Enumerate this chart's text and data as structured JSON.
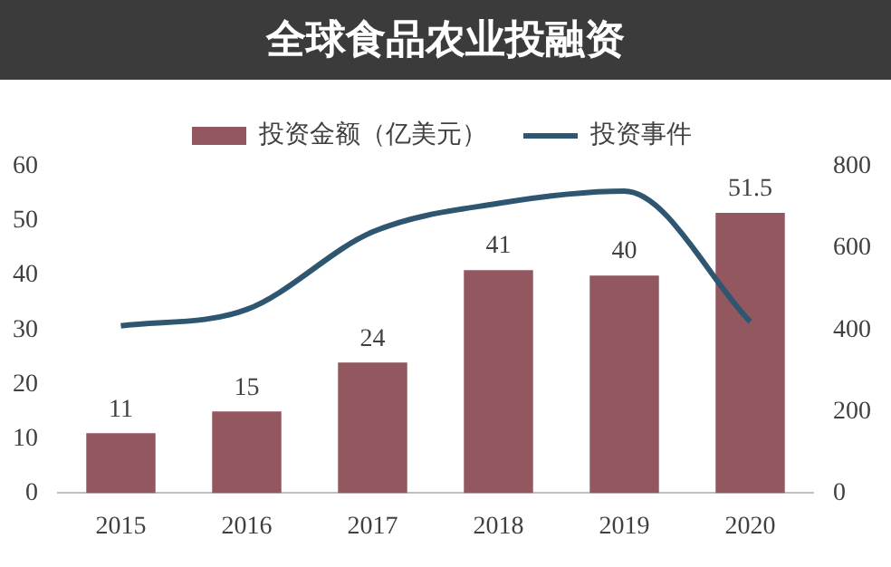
{
  "chart_data": {
    "type": "bar",
    "title": "全球食品农业投融资",
    "categories": [
      "2015",
      "2016",
      "2017",
      "2018",
      "2019",
      "2020"
    ],
    "series": [
      {
        "name": "投资金额（亿美元）",
        "color": "#935760",
        "values": [
          11,
          15,
          24,
          41,
          40,
          51.5
        ],
        "value_labels": [
          "11",
          "15",
          "24",
          "41",
          "40",
          "51.5"
        ]
      },
      {
        "name": "投资事件",
        "type": "line",
        "axis": "y2",
        "color": "#2e5670",
        "values": [
          410,
          450,
          640,
          710,
          740,
          420
        ]
      }
    ],
    "ylim": [
      0,
      60
    ],
    "yticks": [
      0,
      10,
      20,
      30,
      40,
      50,
      60
    ],
    "y2lim": [
      0,
      800
    ],
    "y2ticks": [
      0,
      200,
      400,
      600,
      800
    ],
    "grid": false,
    "legend": "top",
    "marker": "none"
  }
}
